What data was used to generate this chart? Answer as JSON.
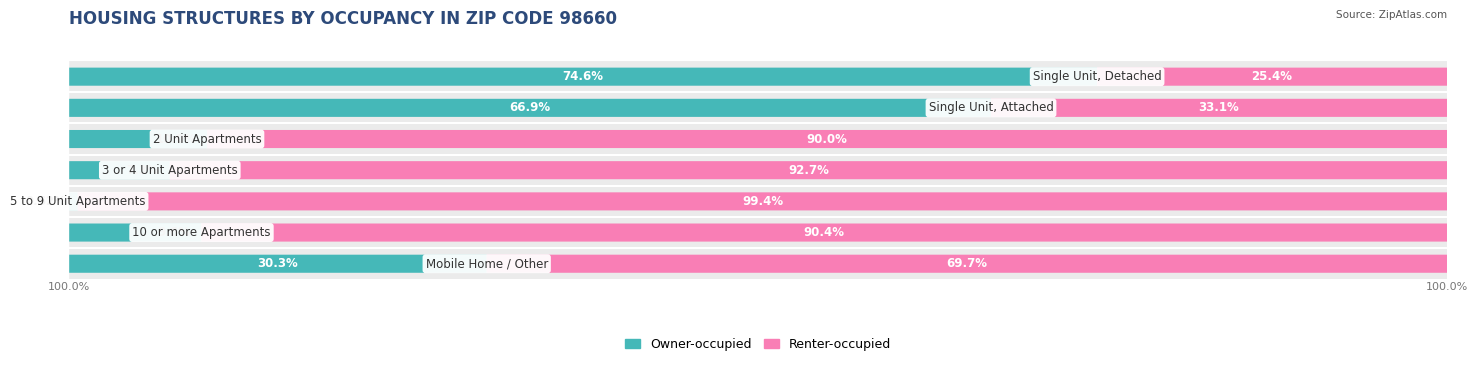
{
  "title": "HOUSING STRUCTURES BY OCCUPANCY IN ZIP CODE 98660",
  "source": "Source: ZipAtlas.com",
  "categories": [
    "Single Unit, Detached",
    "Single Unit, Attached",
    "2 Unit Apartments",
    "3 or 4 Unit Apartments",
    "5 to 9 Unit Apartments",
    "10 or more Apartments",
    "Mobile Home / Other"
  ],
  "owner_pct": [
    74.6,
    66.9,
    10.0,
    7.3,
    0.62,
    9.6,
    30.3
  ],
  "renter_pct": [
    25.4,
    33.1,
    90.0,
    92.7,
    99.4,
    90.4,
    69.7
  ],
  "owner_color": "#45B8B8",
  "renter_color": "#F97EB5",
  "bg_color": "#FFFFFF",
  "row_bg_color": "#EBEBEB",
  "bar_height": 0.58,
  "title_fontsize": 12,
  "label_fontsize": 8.5,
  "legend_fontsize": 9,
  "category_fontsize": 8.5,
  "axis_label_fontsize": 8
}
